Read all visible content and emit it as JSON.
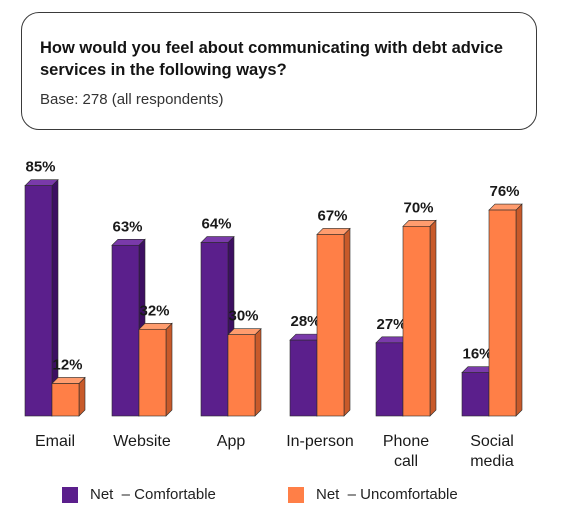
{
  "question": {
    "title": "How would you feel about communicating with debt advice services in the following ways?",
    "base": "Base: 278 (all respondents)"
  },
  "colors": {
    "comfortable": "#5b1f8c",
    "comfortable_side": "#3d0f62",
    "comfortable_top": "#7a3aaa",
    "uncomfortable": "#ff7f47",
    "uncomfortable_side": "#c85a2a",
    "uncomfortable_top": "#ff9c6e"
  },
  "legend": {
    "comfortable": "Net  – Comfortable",
    "uncomfortable": "Net  – Uncomfortable"
  },
  "chart_data": {
    "type": "bar",
    "categories": [
      [
        "Email"
      ],
      [
        "Website"
      ],
      [
        "App"
      ],
      [
        "In-person"
      ],
      [
        "Phone",
        "call"
      ],
      [
        "Social",
        "media"
      ]
    ],
    "series": [
      {
        "name": "Net  – Comfortable",
        "values": [
          85,
          63,
          64,
          28,
          27,
          16
        ],
        "labels": [
          "85%",
          "63%",
          "64%",
          "28%",
          "27%",
          "16%"
        ]
      },
      {
        "name": "Net  – Uncomfortable",
        "values": [
          12,
          32,
          30,
          67,
          70,
          76
        ],
        "labels": [
          "12%",
          "32%",
          "30%",
          "67%",
          "70%",
          "76%"
        ]
      }
    ],
    "ylim": [
      0,
      100
    ],
    "legend_position": "bottom",
    "grid": false
  }
}
